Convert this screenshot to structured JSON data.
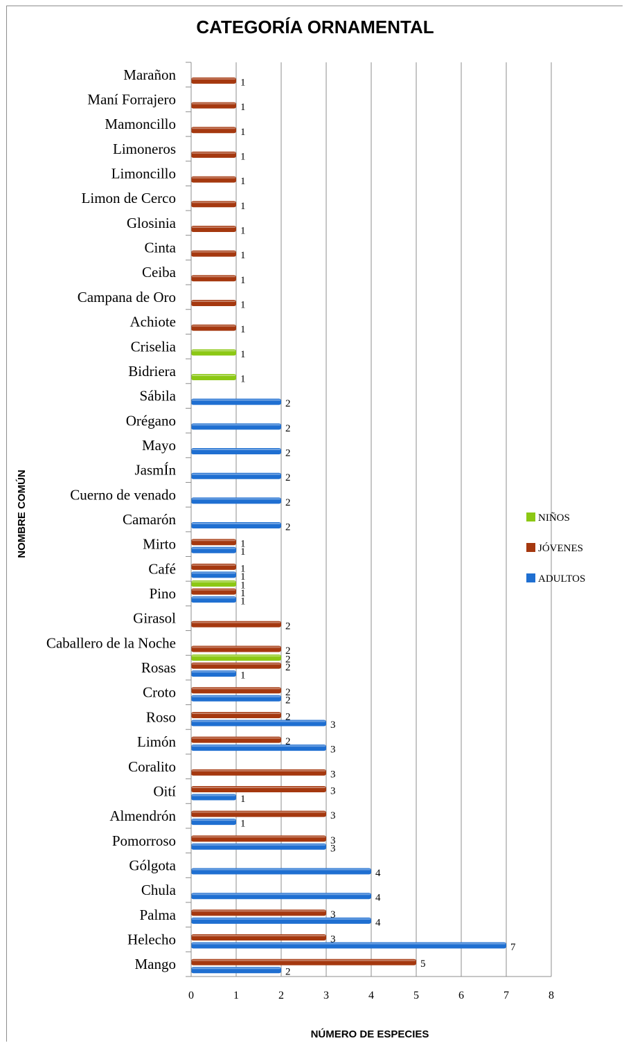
{
  "chart_data": {
    "type": "bar",
    "orientation": "horizontal",
    "title": "CATEGORÍA ORNAMENTAL",
    "xlabel": "NÚMERO DE ESPECIES",
    "ylabel": "NOMBRE COMÚN",
    "xlim": [
      0,
      8
    ],
    "x_ticks": [
      "0",
      "1",
      "2",
      "3",
      "4",
      "5",
      "6",
      "7",
      "8"
    ],
    "grid": "vertical major gridlines",
    "legend_position": "right",
    "categories": [
      "Mango",
      "Helecho",
      "Palma",
      "Chula",
      "Gólgota",
      "Pomorroso",
      "Almendrón",
      "Oití",
      "Coralito",
      "Limón",
      "Roso",
      "Croto",
      "Rosas",
      "Caballero de la Noche",
      "Girasol",
      "Pino",
      "Café",
      "Mirto",
      "Camarón",
      "Cuerno de venado",
      "JasmÍn",
      "Mayo",
      "Orégano",
      "Sábila",
      "Bidriera",
      "Criselia",
      "Achiote",
      "Campana de Oro",
      "Ceiba",
      "Cinta",
      "Glosinia",
      "Limon de Cerco",
      "Limoncillo",
      "Limoneros",
      "Mamoncillo",
      "Maní Forrajero",
      "Marañon"
    ],
    "series": [
      {
        "name": "ADULTOS",
        "color": "#1f6fd1",
        "values": [
          2,
          7,
          4,
          4,
          4,
          3,
          1,
          1,
          null,
          3,
          3,
          2,
          1,
          null,
          null,
          1,
          1,
          1,
          2,
          2,
          2,
          2,
          2,
          2,
          null,
          null,
          null,
          null,
          null,
          null,
          null,
          null,
          null,
          null,
          null,
          null,
          null
        ]
      },
      {
        "name": "JÓVENES",
        "color": "#a5380f",
        "values": [
          5,
          3,
          3,
          null,
          null,
          3,
          3,
          3,
          3,
          2,
          2,
          2,
          2,
          2,
          2,
          1,
          1,
          1,
          null,
          null,
          null,
          null,
          null,
          null,
          null,
          null,
          1,
          1,
          1,
          1,
          1,
          1,
          1,
          1,
          1,
          1,
          1
        ]
      },
      {
        "name": "NIÑOS",
        "color": "#8cc814",
        "values": [
          null,
          null,
          null,
          null,
          null,
          null,
          null,
          null,
          null,
          null,
          null,
          null,
          2,
          null,
          null,
          1,
          null,
          null,
          null,
          null,
          null,
          null,
          null,
          null,
          1,
          1,
          null,
          null,
          null,
          null,
          null,
          null,
          null,
          null,
          null,
          null,
          null
        ]
      }
    ],
    "legend": [
      "NIÑOS",
      "JÓVENES",
      "ADULTOS"
    ]
  }
}
